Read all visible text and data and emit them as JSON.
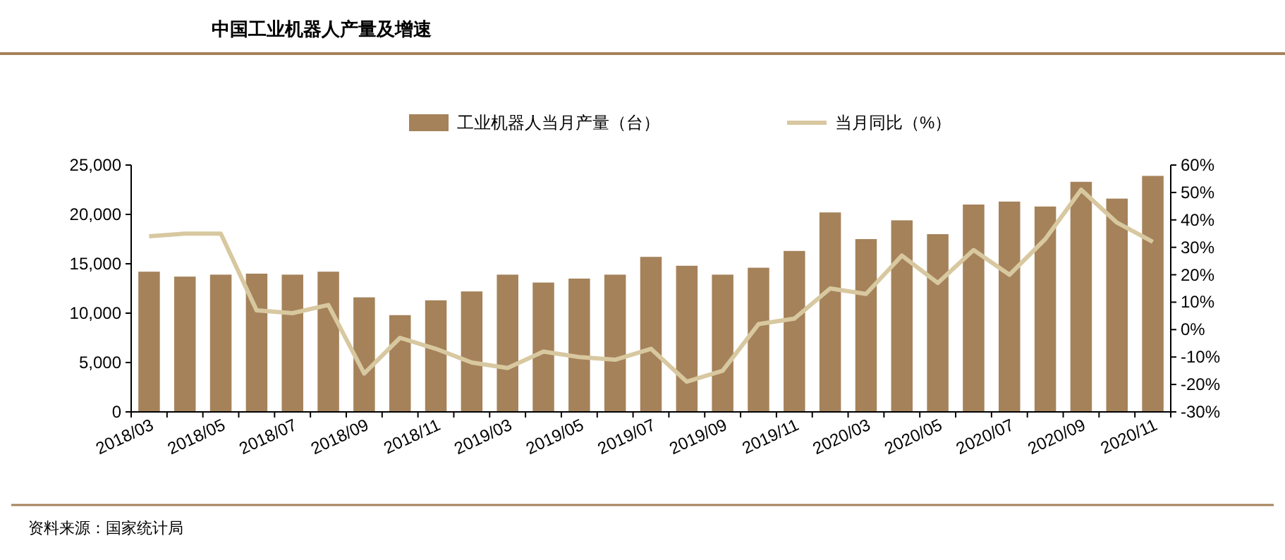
{
  "chart_data": {
    "type": "bar",
    "title": "中国工业机器人产量及增速",
    "categories": [
      "2018/03",
      null,
      "2018/05",
      null,
      "2018/07",
      null,
      "2018/09",
      null,
      "2018/11",
      null,
      "2019/03",
      null,
      "2019/05",
      null,
      "2019/07",
      null,
      "2019/09",
      null,
      "2019/11",
      null,
      "2020/03",
      null,
      "2020/05",
      null,
      "2020/07",
      null,
      "2020/09",
      null,
      "2020/11"
    ],
    "series": [
      {
        "name": "工业机器人当月产量（台）",
        "color": "#a5825a",
        "values": [
          14200,
          13700,
          13900,
          14000,
          13900,
          14200,
          11600,
          9800,
          11300,
          12200,
          13900,
          13100,
          13500,
          13900,
          15700,
          14800,
          13900,
          14600,
          16300,
          20200,
          17500,
          19400,
          18000,
          21000,
          21300,
          20800,
          23300,
          21600,
          23900
        ]
      },
      {
        "name": "当月同比（%）",
        "type": "line",
        "axis": "y2",
        "color": "#d8c8a0",
        "values": [
          34,
          35,
          35,
          7,
          6,
          9,
          -16,
          -3,
          -7,
          -12,
          -14,
          -8,
          -10,
          -11,
          -7,
          -19,
          -15,
          2,
          4,
          15,
          13,
          27,
          17,
          29,
          20,
          33,
          51,
          39,
          32
        ]
      }
    ],
    "ylim": [
      0,
      25000
    ],
    "yticks": [
      {
        "value": 0,
        "label": "0"
      },
      {
        "value": 5000,
        "label": "5,000"
      },
      {
        "value": 10000,
        "label": "10,000"
      },
      {
        "value": 15000,
        "label": "15,000"
      },
      {
        "value": 20000,
        "label": "20,000"
      },
      {
        "value": 25000,
        "label": "25,000"
      }
    ],
    "y2lim": [
      -30,
      60
    ],
    "y2ticks": [
      {
        "value": -30,
        "label": "-30%"
      },
      {
        "value": -20,
        "label": "-20%"
      },
      {
        "value": -10,
        "label": "-10%"
      },
      {
        "value": 0,
        "label": "0%"
      },
      {
        "value": 10,
        "label": "10%"
      },
      {
        "value": 20,
        "label": "20%"
      },
      {
        "value": 30,
        "label": "30%"
      },
      {
        "value": 40,
        "label": "40%"
      },
      {
        "value": 50,
        "label": "50%"
      },
      {
        "value": 60,
        "label": "60%"
      }
    ],
    "legend": "top",
    "grid": false,
    "annotations": [
      "资料来源：国家统计局"
    ]
  }
}
